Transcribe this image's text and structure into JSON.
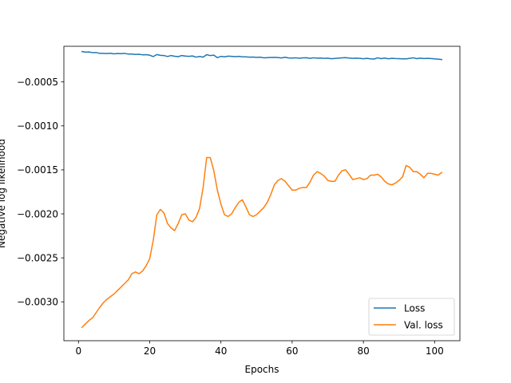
{
  "chart_data": {
    "type": "line",
    "xlabel": "Epochs",
    "ylabel": "Negative log likelihood",
    "xlim": [
      -4.1,
      107.1
    ],
    "ylim": [
      -0.003442,
      -9.5e-05
    ],
    "xticks": [
      0,
      20,
      40,
      60,
      80,
      100
    ],
    "xtick_labels": [
      "0",
      "20",
      "40",
      "60",
      "80",
      "100"
    ],
    "yticks": [
      -0.003,
      -0.0025,
      -0.002,
      -0.0015,
      -0.001,
      -0.0005
    ],
    "ytick_labels": [
      "−0.0030",
      "−0.0025",
      "−0.0020",
      "−0.0015",
      "−0.0010",
      "−0.0005"
    ],
    "grid": false,
    "legend": "lower-right",
    "x": [
      1,
      2,
      3,
      4,
      5,
      6,
      7,
      8,
      9,
      10,
      11,
      12,
      13,
      14,
      15,
      16,
      17,
      18,
      19,
      20,
      21,
      22,
      23,
      24,
      25,
      26,
      27,
      28,
      29,
      30,
      31,
      32,
      33,
      34,
      35,
      36,
      37,
      38,
      39,
      40,
      41,
      42,
      43,
      44,
      45,
      46,
      47,
      48,
      49,
      50,
      51,
      52,
      53,
      54,
      55,
      56,
      57,
      58,
      59,
      60,
      61,
      62,
      63,
      64,
      65,
      66,
      67,
      68,
      69,
      70,
      71,
      72,
      73,
      74,
      75,
      76,
      77,
      78,
      79,
      80,
      81,
      82,
      83,
      84,
      85,
      86,
      87,
      88,
      89,
      90,
      91,
      92,
      93,
      94,
      95,
      96,
      97,
      98,
      99,
      100,
      101,
      102
    ],
    "series": [
      {
        "name": "Loss",
        "color": "#1f77b4",
        "values": [
          -0.000155,
          -0.000162,
          -0.00016,
          -0.000168,
          -0.000166,
          -0.000176,
          -0.000175,
          -0.000178,
          -0.000174,
          -0.000181,
          -0.000177,
          -0.000179,
          -0.000176,
          -0.000184,
          -0.000183,
          -0.000188,
          -0.000186,
          -0.000192,
          -0.00019,
          -0.000196,
          -0.000212,
          -0.000189,
          -0.000198,
          -0.0002,
          -0.000211,
          -0.0002,
          -0.000208,
          -0.000213,
          -0.0002,
          -0.000206,
          -0.00021,
          -0.000205,
          -0.000218,
          -0.000211,
          -0.000219,
          -0.00019,
          -0.000201,
          -0.000196,
          -0.000224,
          -0.00021,
          -0.000215,
          -0.000207,
          -0.000209,
          -0.000213,
          -0.00021,
          -0.000214,
          -0.000215,
          -0.000219,
          -0.000218,
          -0.000221,
          -0.000219,
          -0.000226,
          -0.000224,
          -0.000222,
          -0.000221,
          -0.000223,
          -0.000228,
          -0.00022,
          -0.000228,
          -0.000229,
          -0.000226,
          -0.000231,
          -0.000227,
          -0.000225,
          -0.000232,
          -0.000226,
          -0.00023,
          -0.000229,
          -0.000232,
          -0.00023,
          -0.000237,
          -0.000233,
          -0.00023,
          -0.000227,
          -0.000224,
          -0.000229,
          -0.000232,
          -0.00023,
          -0.000232,
          -0.000237,
          -0.000232,
          -0.000238,
          -0.00024,
          -0.000226,
          -0.000236,
          -0.000229,
          -0.000237,
          -0.000232,
          -0.000235,
          -0.000236,
          -0.000238,
          -0.000238,
          -0.000232,
          -0.000226,
          -0.000236,
          -0.00023,
          -0.000235,
          -0.000232,
          -0.000234,
          -0.000238,
          -0.000241,
          -0.000246
        ]
      },
      {
        "name": "Val. loss",
        "color": "#ff7f0e",
        "values": [
          -0.00329,
          -0.00325,
          -0.00321,
          -0.00318,
          -0.00312,
          -0.00306,
          -0.00301,
          -0.00297,
          -0.00294,
          -0.00291,
          -0.00287,
          -0.00283,
          -0.00279,
          -0.00275,
          -0.00268,
          -0.00266,
          -0.00268,
          -0.00265,
          -0.00259,
          -0.00251,
          -0.0023,
          -0.00201,
          -0.00195,
          -0.00199,
          -0.00211,
          -0.00216,
          -0.00219,
          -0.00211,
          -0.00201,
          -0.002,
          -0.00207,
          -0.00209,
          -0.00204,
          -0.00194,
          -0.0017,
          -0.00136,
          -0.00136,
          -0.00151,
          -0.00173,
          -0.00189,
          -0.00201,
          -0.00203,
          -0.002,
          -0.00193,
          -0.00187,
          -0.00184,
          -0.00192,
          -0.00201,
          -0.00203,
          -0.00201,
          -0.00197,
          -0.00193,
          -0.00187,
          -0.00178,
          -0.00167,
          -0.00162,
          -0.0016,
          -0.00163,
          -0.00168,
          -0.00173,
          -0.00173,
          -0.00171,
          -0.0017,
          -0.0017,
          -0.00164,
          -0.00156,
          -0.00152,
          -0.00154,
          -0.00157,
          -0.00162,
          -0.00163,
          -0.00163,
          -0.00156,
          -0.00151,
          -0.0015,
          -0.00155,
          -0.00161,
          -0.0016,
          -0.00159,
          -0.00161,
          -0.0016,
          -0.00156,
          -0.00156,
          -0.00155,
          -0.00158,
          -0.00163,
          -0.00166,
          -0.00167,
          -0.00165,
          -0.00162,
          -0.00158,
          -0.00145,
          -0.00147,
          -0.00152,
          -0.00152,
          -0.00155,
          -0.00159,
          -0.00154,
          -0.00154,
          -0.00155,
          -0.00156,
          -0.00153
        ]
      }
    ]
  }
}
